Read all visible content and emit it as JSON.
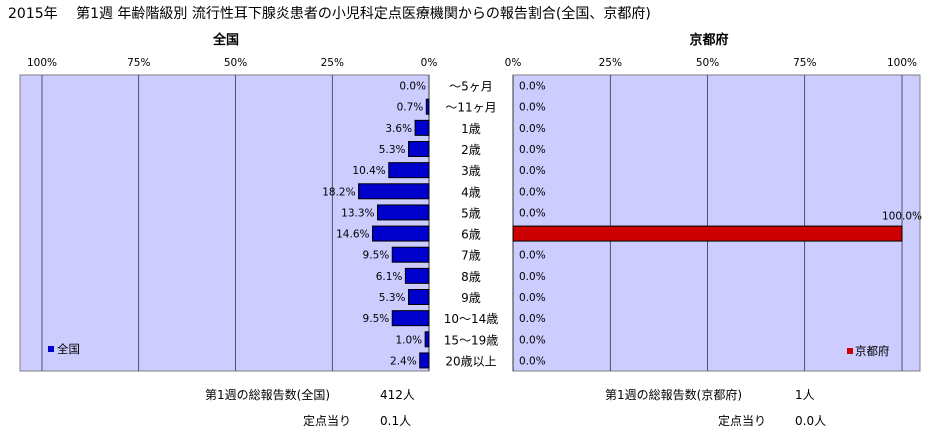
{
  "title": "2015年　 第1週 年齢階級別 流行性耳下腺炎患者の小児科定点医療機関からの報告割合(全国、京都府)",
  "categories": [
    "～5ヶ月",
    "～11ヶ月",
    "1歳",
    "2歳",
    "3歳",
    "4歳",
    "5歳",
    "6歳",
    "7歳",
    "8歳",
    "9歳",
    "10～14歳",
    "15～19歳",
    "20歳以上"
  ],
  "colors": {
    "national": "#0000CC",
    "kyoto": "#CC0000",
    "plot_bg": "#CCCCFF"
  },
  "chart_data": [
    {
      "type": "bar",
      "orientation": "horizontal",
      "title": "全国",
      "x_axis_reversed": true,
      "xlim": [
        0,
        100
      ],
      "ticks": [
        "100%",
        "75%",
        "50%",
        "25%",
        "0%"
      ],
      "legend": {
        "label": "全国",
        "position": "bottom-left"
      },
      "series": [
        {
          "name": "全国",
          "values": [
            0.0,
            0.7,
            3.6,
            5.3,
            10.4,
            18.2,
            13.3,
            14.6,
            9.5,
            6.1,
            5.3,
            9.5,
            1.0,
            2.4
          ],
          "labels": [
            "0.0%",
            "0.7%",
            "3.6%",
            "5.3%",
            "10.4%",
            "18.2%",
            "13.3%",
            "14.6%",
            "9.5%",
            "6.1%",
            "5.3%",
            "9.5%",
            "1.0%",
            "2.4%"
          ]
        }
      ]
    },
    {
      "type": "bar",
      "orientation": "horizontal",
      "title": "京都府",
      "xlim": [
        0,
        100
      ],
      "ticks": [
        "0%",
        "25%",
        "50%",
        "75%",
        "100%"
      ],
      "legend": {
        "label": "京都府",
        "position": "bottom-right"
      },
      "series": [
        {
          "name": "京都府",
          "values": [
            0,
            0,
            0,
            0,
            0,
            0,
            0,
            100,
            0,
            0,
            0,
            0,
            0,
            0
          ],
          "labels": [
            "0.0%",
            "0.0%",
            "0.0%",
            "0.0%",
            "0.0%",
            "0.0%",
            "0.0%",
            "100.0%",
            "0.0%",
            "0.0%",
            "0.0%",
            "0.0%",
            "0.0%",
            "0.0%"
          ]
        }
      ]
    }
  ],
  "summary": {
    "national_total_label": "第1週の総報告数(全国)",
    "national_total_value": "412人",
    "national_per_label": "定点当り",
    "national_per_value": "0.1人",
    "kyoto_total_label": "第1週の総報告数(京都府)",
    "kyoto_total_value": "1人",
    "kyoto_per_label": "定点当り",
    "kyoto_per_value": "0.0人"
  }
}
